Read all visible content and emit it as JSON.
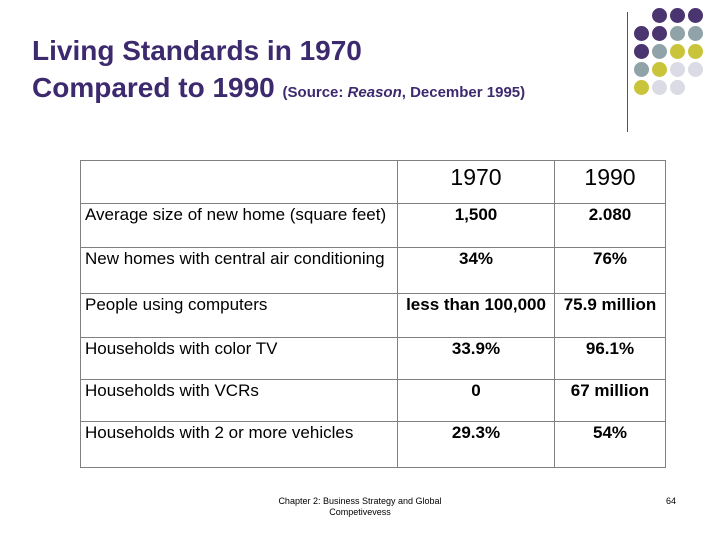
{
  "title": {
    "line1": "Living Standards in 1970",
    "line2": "Compared to 1990",
    "source_prefix": "(Source:  ",
    "source_pub": "Reason",
    "source_suffix": ", December 1995)"
  },
  "decor": {
    "dot_colors": [
      "#ffffff",
      "#4a3570",
      "#4a3570",
      "#4a3570",
      "#4a3570",
      "#4a3570",
      "#8fa3a8",
      "#8fa3a8",
      "#4a3570",
      "#8fa3a8",
      "#c9c43a",
      "#c9c43a",
      "#8fa3a8",
      "#c9c43a",
      "#dadbe4",
      "#dadbe4",
      "#c9c43a",
      "#dadbe4",
      "#dadbe4",
      "#ffffff"
    ]
  },
  "table": {
    "columns": [
      "",
      "1970",
      "1990"
    ],
    "rows": [
      {
        "label": "Average size of new home (square feet)",
        "v1970": "1,500",
        "v1990": "2.080"
      },
      {
        "label": "New homes with central air conditioning",
        "v1970": "34%",
        "v1990": "76%"
      },
      {
        "label": "People using computers",
        "v1970": "less than 100,000",
        "v1990": "75.9 million"
      },
      {
        "label": "Households with color TV",
        "v1970": "33.9%",
        "v1990": "96.1%"
      },
      {
        "label": "Households with VCRs",
        "v1970": "0",
        "v1990": "67 million"
      },
      {
        "label": "Households with 2 or more vehicles",
        "v1970": "29.3%",
        "v1990": "54%"
      }
    ]
  },
  "footer": {
    "text": "Chapter 2: Business Strategy and Global Competivevess",
    "page": "64"
  }
}
